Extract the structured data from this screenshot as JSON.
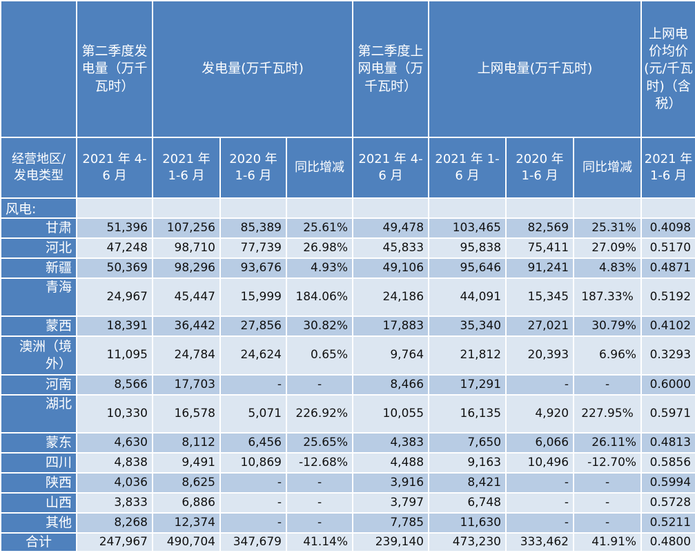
{
  "columns": {
    "q2_gen": "第二季度发电量（万千瓦时）",
    "gen_group": "发电量(万千瓦时)",
    "q2_grid": "第二季度上网电量（万千瓦时）",
    "grid_group": "上网电量(万千瓦时)",
    "price": "上网电价均价(元/千瓦时)（含税）",
    "region_type": "经营地区/发电类型",
    "gen_q2_period": "2021 年 4-6 月",
    "gen_2021": "2021 年 1-6 月",
    "gen_2020": "2020 年 1-6 月",
    "gen_yoy": "同比增减",
    "grid_q2_period": "2021 年 4-6 月",
    "grid_2021": "2021 年 1-6 月",
    "grid_2020": "2020 年 1-6 月",
    "grid_yoy": "同比增减",
    "price_period": "2021 年 1-6 月"
  },
  "category": "风电:",
  "rows": [
    {
      "region": "甘肃",
      "q2_gen": "51,396",
      "gen_2021": "107,256",
      "gen_2020": "85,389",
      "gen_yoy": "25.61%",
      "q2_grid": "49,478",
      "grid_2021": "103,465",
      "grid_2020": "82,569",
      "grid_yoy": "25.31%",
      "price": "0.4098"
    },
    {
      "region": "河北",
      "q2_gen": "47,248",
      "gen_2021": "98,710",
      "gen_2020": "77,739",
      "gen_yoy": "26.98%",
      "q2_grid": "45,833",
      "grid_2021": "95,838",
      "grid_2020": "75,411",
      "grid_yoy": "27.09%",
      "price": "0.5170"
    },
    {
      "region": "新疆",
      "q2_gen": "50,369",
      "gen_2021": "98,296",
      "gen_2020": "93,676",
      "gen_yoy": "4.93%",
      "q2_grid": "49,106",
      "grid_2021": "95,646",
      "grid_2020": "91,241",
      "grid_yoy": "4.83%",
      "price": "0.4871"
    },
    {
      "region": "青海",
      "q2_gen": "24,967",
      "gen_2021": "45,447",
      "gen_2020": "15,999",
      "gen_yoy": "184.06%",
      "q2_grid": "24,186",
      "grid_2021": "44,091",
      "grid_2020": "15,345",
      "grid_yoy": "187.33%",
      "price": "0.5192"
    },
    {
      "region": "蒙西",
      "q2_gen": "18,391",
      "gen_2021": "36,442",
      "gen_2020": "27,856",
      "gen_yoy": "30.82%",
      "q2_grid": "17,883",
      "grid_2021": "35,340",
      "grid_2020": "27,021",
      "grid_yoy": "30.79%",
      "price": "0.4102"
    },
    {
      "region": "澳洲（境外）",
      "q2_gen": "11,095",
      "gen_2021": "24,784",
      "gen_2020": "24,624",
      "gen_yoy": "0.65%",
      "q2_grid": "9,764",
      "grid_2021": "21,812",
      "grid_2020": "20,393",
      "grid_yoy": "6.96%",
      "price": "0.3293"
    },
    {
      "region": "河南",
      "q2_gen": "8,566",
      "gen_2021": "17,703",
      "gen_2020": "-",
      "gen_yoy": "-",
      "q2_grid": "8,466",
      "grid_2021": "17,291",
      "grid_2020": "-",
      "grid_yoy": "-",
      "price": "0.6000"
    },
    {
      "region": "湖北",
      "q2_gen": "10,330",
      "gen_2021": "16,578",
      "gen_2020": "5,071",
      "gen_yoy": "226.92%",
      "q2_grid": "10,055",
      "grid_2021": "16,135",
      "grid_2020": "4,920",
      "grid_yoy": "227.95%",
      "price": "0.5971"
    },
    {
      "region": "蒙东",
      "q2_gen": "4,630",
      "gen_2021": "8,112",
      "gen_2020": "6,456",
      "gen_yoy": "25.65%",
      "q2_grid": "4,383",
      "grid_2021": "7,650",
      "grid_2020": "6,066",
      "grid_yoy": "26.11%",
      "price": "0.4813"
    },
    {
      "region": "四川",
      "q2_gen": "4,838",
      "gen_2021": "9,491",
      "gen_2020": "10,869",
      "gen_yoy": "-12.68%",
      "q2_grid": "4,488",
      "grid_2021": "9,163",
      "grid_2020": "10,496",
      "grid_yoy": "-12.70%",
      "price": "0.5856"
    },
    {
      "region": "陕西",
      "q2_gen": "4,036",
      "gen_2021": "8,625",
      "gen_2020": "-",
      "gen_yoy": "-",
      "q2_grid": "3,916",
      "grid_2021": "8,421",
      "grid_2020": "-",
      "grid_yoy": "-",
      "price": "0.5994"
    },
    {
      "region": "山西",
      "q2_gen": "3,833",
      "gen_2021": "6,886",
      "gen_2020": "-",
      "gen_yoy": "-",
      "q2_grid": "3,797",
      "grid_2021": "6,748",
      "grid_2020": "-",
      "grid_yoy": "-",
      "price": "0.5728"
    },
    {
      "region": "其他",
      "q2_gen": "8,268",
      "gen_2021": "12,374",
      "gen_2020": "-",
      "gen_yoy": "-",
      "q2_grid": "7,785",
      "grid_2021": "11,630",
      "grid_2020": "-",
      "grid_yoy": "-",
      "price": "0.5211"
    }
  ],
  "total": {
    "region": "合计",
    "q2_gen": "247,967",
    "gen_2021": "490,704",
    "gen_2020": "347,679",
    "gen_yoy": "41.14%",
    "q2_grid": "239,140",
    "grid_2021": "473,230",
    "grid_2020": "333,462",
    "grid_yoy": "41.91%",
    "price": "0.4800"
  }
}
